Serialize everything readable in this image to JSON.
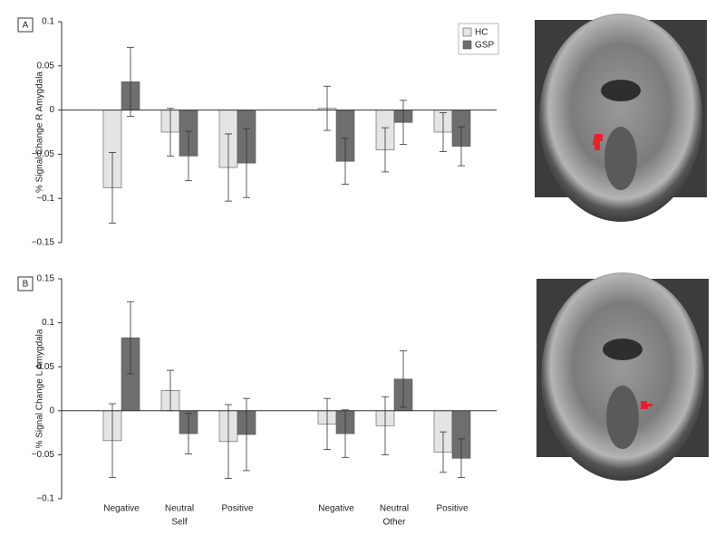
{
  "chart_data": [
    {
      "type": "bar",
      "panel": "A",
      "ylabel": "% Signal Change R Amygdala",
      "categories": [
        null,
        null,
        null,
        null,
        null,
        null
      ],
      "ylim": [
        -0.15,
        0.1
      ],
      "yticks": [
        0.1,
        0.05,
        0,
        {
          "value": -0.05,
          "label": "−0.05"
        },
        {
          "value": -0.1,
          "label": "−0.1"
        },
        {
          "value": -0.15,
          "label": "−0.15"
        }
      ],
      "legend": "upper right",
      "series": [
        {
          "name": "HC",
          "color": "#e4e4e4",
          "values": [
            -0.088,
            -0.025,
            -0.065,
            0.002,
            -0.045,
            -0.025
          ],
          "errors": [
            0.04,
            0.027,
            0.038,
            0.025,
            0.025,
            0.022
          ]
        },
        {
          "name": "GSP",
          "color": "#6e6e6e",
          "values": [
            0.032,
            -0.052,
            -0.06,
            -0.058,
            -0.014,
            -0.041
          ],
          "errors": [
            0.039,
            0.028,
            0.039,
            0.026,
            0.025,
            0.022
          ]
        }
      ]
    },
    {
      "type": "bar",
      "panel": "B",
      "ylabel": "% Signal Change L Amygdala",
      "categories": [
        "Negative",
        "Neutral",
        "Positive",
        "Negative",
        "Neutral",
        "Positive"
      ],
      "group_labels": [
        "Self",
        "Other"
      ],
      "ylim": [
        -0.1,
        0.15
      ],
      "yticks": [
        0.15,
        0.1,
        0.05,
        0,
        {
          "value": -0.05,
          "label": "−0.05"
        },
        {
          "value": -0.1,
          "label": "−0.1"
        }
      ],
      "series": [
        {
          "color": "#e4e4e4",
          "values": [
            -0.034,
            0.023,
            -0.035,
            -0.015,
            -0.017,
            -0.047
          ],
          "errors": [
            0.042,
            0.023,
            0.042,
            0.029,
            0.033,
            0.023
          ]
        },
        {
          "color": "#6e6e6e",
          "values": [
            0.083,
            -0.026,
            -0.027,
            -0.026,
            0.036,
            -0.054
          ],
          "errors": [
            0.041,
            0.023,
            0.041,
            0.027,
            0.032,
            0.022
          ]
        }
      ]
    }
  ]
}
